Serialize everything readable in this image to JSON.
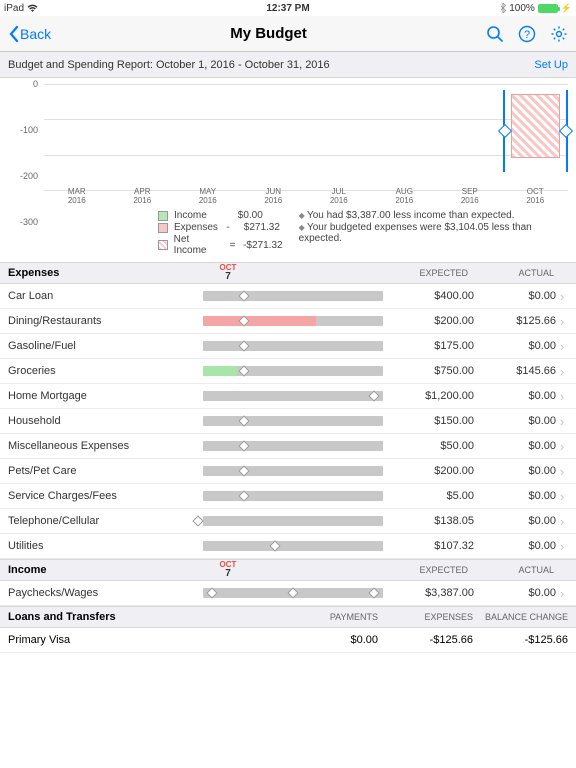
{
  "status": {
    "carrier": "iPad",
    "time": "12:37 PM",
    "battery_pct": "100%"
  },
  "nav": {
    "back": "Back",
    "title": "My Budget"
  },
  "subheader": {
    "text": "Budget and Spending Report: October 1, 2016 - October 31, 2016",
    "setup": "Set Up"
  },
  "chart": {
    "ylim": [
      -300,
      0
    ],
    "ystep": 100,
    "yticks": [
      "0",
      "-100",
      "-200",
      "-300"
    ],
    "months": [
      {
        "m": "MAR",
        "y": "2016"
      },
      {
        "m": "APR",
        "y": "2016"
      },
      {
        "m": "MAY",
        "y": "2016"
      },
      {
        "m": "JUN",
        "y": "2016"
      },
      {
        "m": "JUL",
        "y": "2016"
      },
      {
        "m": "AUG",
        "y": "2016"
      },
      {
        "m": "SEP",
        "y": "2016"
      },
      {
        "m": "OCT",
        "y": "2016"
      }
    ],
    "selected_index": 7,
    "background": "#ffffff",
    "grid_color": "#e0e0e0",
    "selection_color": "#007aff",
    "hatched_fill": "#f8c8c8"
  },
  "legend": {
    "income": {
      "label": "Income",
      "value": "$0.00",
      "color": "#b8e6b8"
    },
    "expenses": {
      "label": "Expenses",
      "sign": "-",
      "value": "$271.32",
      "color": "#f8c8c8"
    },
    "net": {
      "label": "Net Income",
      "eq": "=",
      "value": "-$271.32",
      "color": "#f8c8c8"
    },
    "msg1": "You had $3,387.00 less income than expected.",
    "msg2": "Your budgeted expenses were $3,104.05 less than expected."
  },
  "expenses_section": {
    "title": "Expenses",
    "date_m": "OCT",
    "date_d": "7",
    "col_expected": "Expected",
    "col_actual": "Actual",
    "rows": [
      {
        "label": "Car  Loan",
        "expected": "$400.00",
        "actual": "$0.00",
        "fill_pct": 0,
        "fill_color": "#b8e6b8",
        "marker_pct": 23
      },
      {
        "label": "Dining/Restaurants",
        "expected": "$200.00",
        "actual": "$125.66",
        "fill_pct": 63,
        "fill_color": "#f4a6a6",
        "marker_pct": 23
      },
      {
        "label": "Gasoline/Fuel",
        "expected": "$175.00",
        "actual": "$0.00",
        "fill_pct": 0,
        "fill_color": "#b8e6b8",
        "marker_pct": 23
      },
      {
        "label": "Groceries",
        "expected": "$750.00",
        "actual": "$145.66",
        "fill_pct": 19,
        "fill_color": "#a8e6a8",
        "marker_pct": 23
      },
      {
        "label": "Home Mortgage",
        "expected": "$1,200.00",
        "actual": "$0.00",
        "fill_pct": 0,
        "fill_color": "#b8e6b8",
        "marker_pct": 95
      },
      {
        "label": "Household",
        "expected": "$150.00",
        "actual": "$0.00",
        "fill_pct": 0,
        "fill_color": "#b8e6b8",
        "marker_pct": 23
      },
      {
        "label": "Miscellaneous Expenses",
        "expected": "$50.00",
        "actual": "$0.00",
        "fill_pct": 0,
        "fill_color": "#b8e6b8",
        "marker_pct": 23
      },
      {
        "label": "Pets/Pet Care",
        "expected": "$200.00",
        "actual": "$0.00",
        "fill_pct": 0,
        "fill_color": "#b8e6b8",
        "marker_pct": 23
      },
      {
        "label": "Service Charges/Fees",
        "expected": "$5.00",
        "actual": "$0.00",
        "fill_pct": 0,
        "fill_color": "#b8e6b8",
        "marker_pct": 23
      },
      {
        "label": "Telephone/Cellular",
        "expected": "$138.05",
        "actual": "$0.00",
        "fill_pct": 0,
        "fill_color": "#b8e6b8",
        "marker_pct": -3
      },
      {
        "label": "Utilities",
        "expected": "$107.32",
        "actual": "$0.00",
        "fill_pct": 0,
        "fill_color": "#b8e6b8",
        "marker_pct": 40
      }
    ]
  },
  "income_section": {
    "title": "Income",
    "date_m": "OCT",
    "date_d": "7",
    "col_expected": "Expected",
    "col_actual": "Actual",
    "rows": [
      {
        "label": "Paychecks/Wages",
        "expected": "$3,387.00",
        "actual": "$0.00",
        "markers": [
          5,
          50,
          95
        ]
      }
    ]
  },
  "loans_section": {
    "title": "Loans and Transfers",
    "col1": "Payments",
    "col2": "Expenses",
    "col3": "Balance Change",
    "rows": [
      {
        "label": "Primary Visa",
        "payments": "$0.00",
        "expenses": "-$125.66",
        "balance": "-$125.66"
      }
    ]
  }
}
